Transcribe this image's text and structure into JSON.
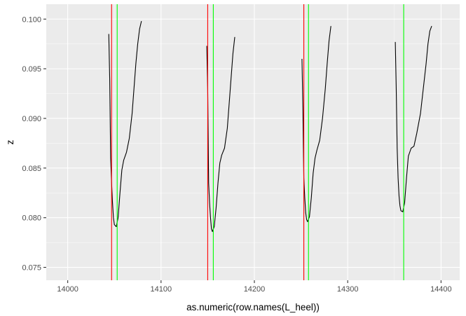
{
  "chart_data": {
    "type": "line",
    "title": "",
    "xlabel": "as.numeric(row.names(L_heel))",
    "ylabel": "z",
    "xlim": [
      13977,
      14420
    ],
    "ylim": [
      0.0737,
      0.1015
    ],
    "x_ticks": [
      14000,
      14100,
      14200,
      14300,
      14400
    ],
    "x_tick_labels": [
      "14000",
      "14100",
      "14200",
      "14300",
      "14400"
    ],
    "y_ticks": [
      0.075,
      0.08,
      0.085,
      0.09,
      0.095,
      0.1
    ],
    "y_tick_labels": [
      "0.075",
      "0.080",
      "0.085",
      "0.090",
      "0.095",
      "0.100"
    ],
    "grid": true,
    "background": "#ebebeb",
    "grid_major_color": "#ffffff",
    "series": [
      {
        "color": "#000000",
        "x": [
          14044,
          14045,
          14046,
          14047,
          14048,
          14049,
          14050,
          14052,
          14054,
          14056,
          14058,
          14060,
          14063,
          14066,
          14069,
          14071,
          14073,
          14075,
          14077,
          14079
        ],
        "y": [
          0.0985,
          0.094,
          0.086,
          0.0835,
          0.0815,
          0.08,
          0.0793,
          0.0791,
          0.08,
          0.0825,
          0.0848,
          0.0858,
          0.0866,
          0.088,
          0.0905,
          0.093,
          0.0955,
          0.0975,
          0.099,
          0.0998
        ]
      },
      {
        "color": "#000000",
        "x": [
          14149,
          14150,
          14151,
          14152,
          14153,
          14154,
          14155,
          14157,
          14159,
          14161,
          14163,
          14165,
          14168,
          14171,
          14173,
          14175,
          14177,
          14179
        ],
        "y": [
          0.0973,
          0.093,
          0.0835,
          0.0815,
          0.08,
          0.0789,
          0.0786,
          0.0791,
          0.081,
          0.0835,
          0.0855,
          0.0863,
          0.087,
          0.089,
          0.0915,
          0.094,
          0.0965,
          0.0982
        ]
      },
      {
        "color": "#000000",
        "x": [
          14251,
          14252,
          14253,
          14254,
          14255,
          14256,
          14257,
          14259,
          14261,
          14263,
          14265,
          14267,
          14270,
          14273,
          14276,
          14278,
          14280,
          14282
        ],
        "y": [
          0.096,
          0.091,
          0.084,
          0.082,
          0.0805,
          0.0798,
          0.0796,
          0.0801,
          0.082,
          0.0845,
          0.086,
          0.0868,
          0.0878,
          0.09,
          0.093,
          0.0955,
          0.0978,
          0.0993
        ]
      },
      {
        "color": "#000000",
        "x": [
          14351,
          14352,
          14353,
          14354,
          14355,
          14356,
          14357,
          14359,
          14361,
          14363,
          14365,
          14368,
          14371,
          14374,
          14378,
          14381,
          14384,
          14386,
          14388,
          14390
        ],
        "y": [
          0.0977,
          0.093,
          0.087,
          0.084,
          0.0822,
          0.0812,
          0.0807,
          0.0806,
          0.0815,
          0.084,
          0.0862,
          0.087,
          0.0872,
          0.0885,
          0.0905,
          0.093,
          0.0955,
          0.0975,
          0.0988,
          0.0993
        ]
      }
    ],
    "vlines_red": {
      "color": "#ff0000",
      "x": [
        14047,
        14150,
        14253
      ]
    },
    "vlines_green": {
      "color": "#00ff00",
      "x": [
        14053,
        14156,
        14258,
        14360
      ]
    }
  }
}
